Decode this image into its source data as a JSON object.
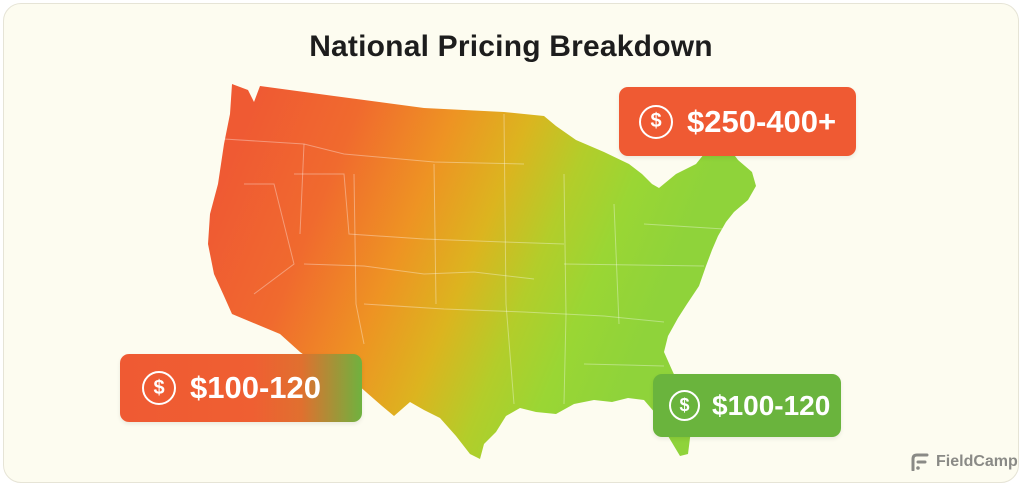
{
  "title": "National Pricing Breakdown",
  "map": {
    "region": "Contiguous United States",
    "gradient_colors": [
      "#ef5a33",
      "#f1772a",
      "#eba21f",
      "#c9c621",
      "#9ad634",
      "#8fd33a"
    ]
  },
  "badges": [
    {
      "id": "northeast",
      "range": "$250-400+",
      "icon": "dollar-coin-icon",
      "color": "#ef5a33"
    },
    {
      "id": "west",
      "range": "$100-120",
      "icon": "dollar-coin-icon",
      "color": "#ef5a33"
    },
    {
      "id": "southeast",
      "range": "$100-120",
      "icon": "dollar-coin-icon",
      "color": "#6ab43d"
    }
  ],
  "coin_glyph": "$",
  "brand": {
    "name": "FieldCamp",
    "icon": "fieldcamp-logo-icon"
  }
}
